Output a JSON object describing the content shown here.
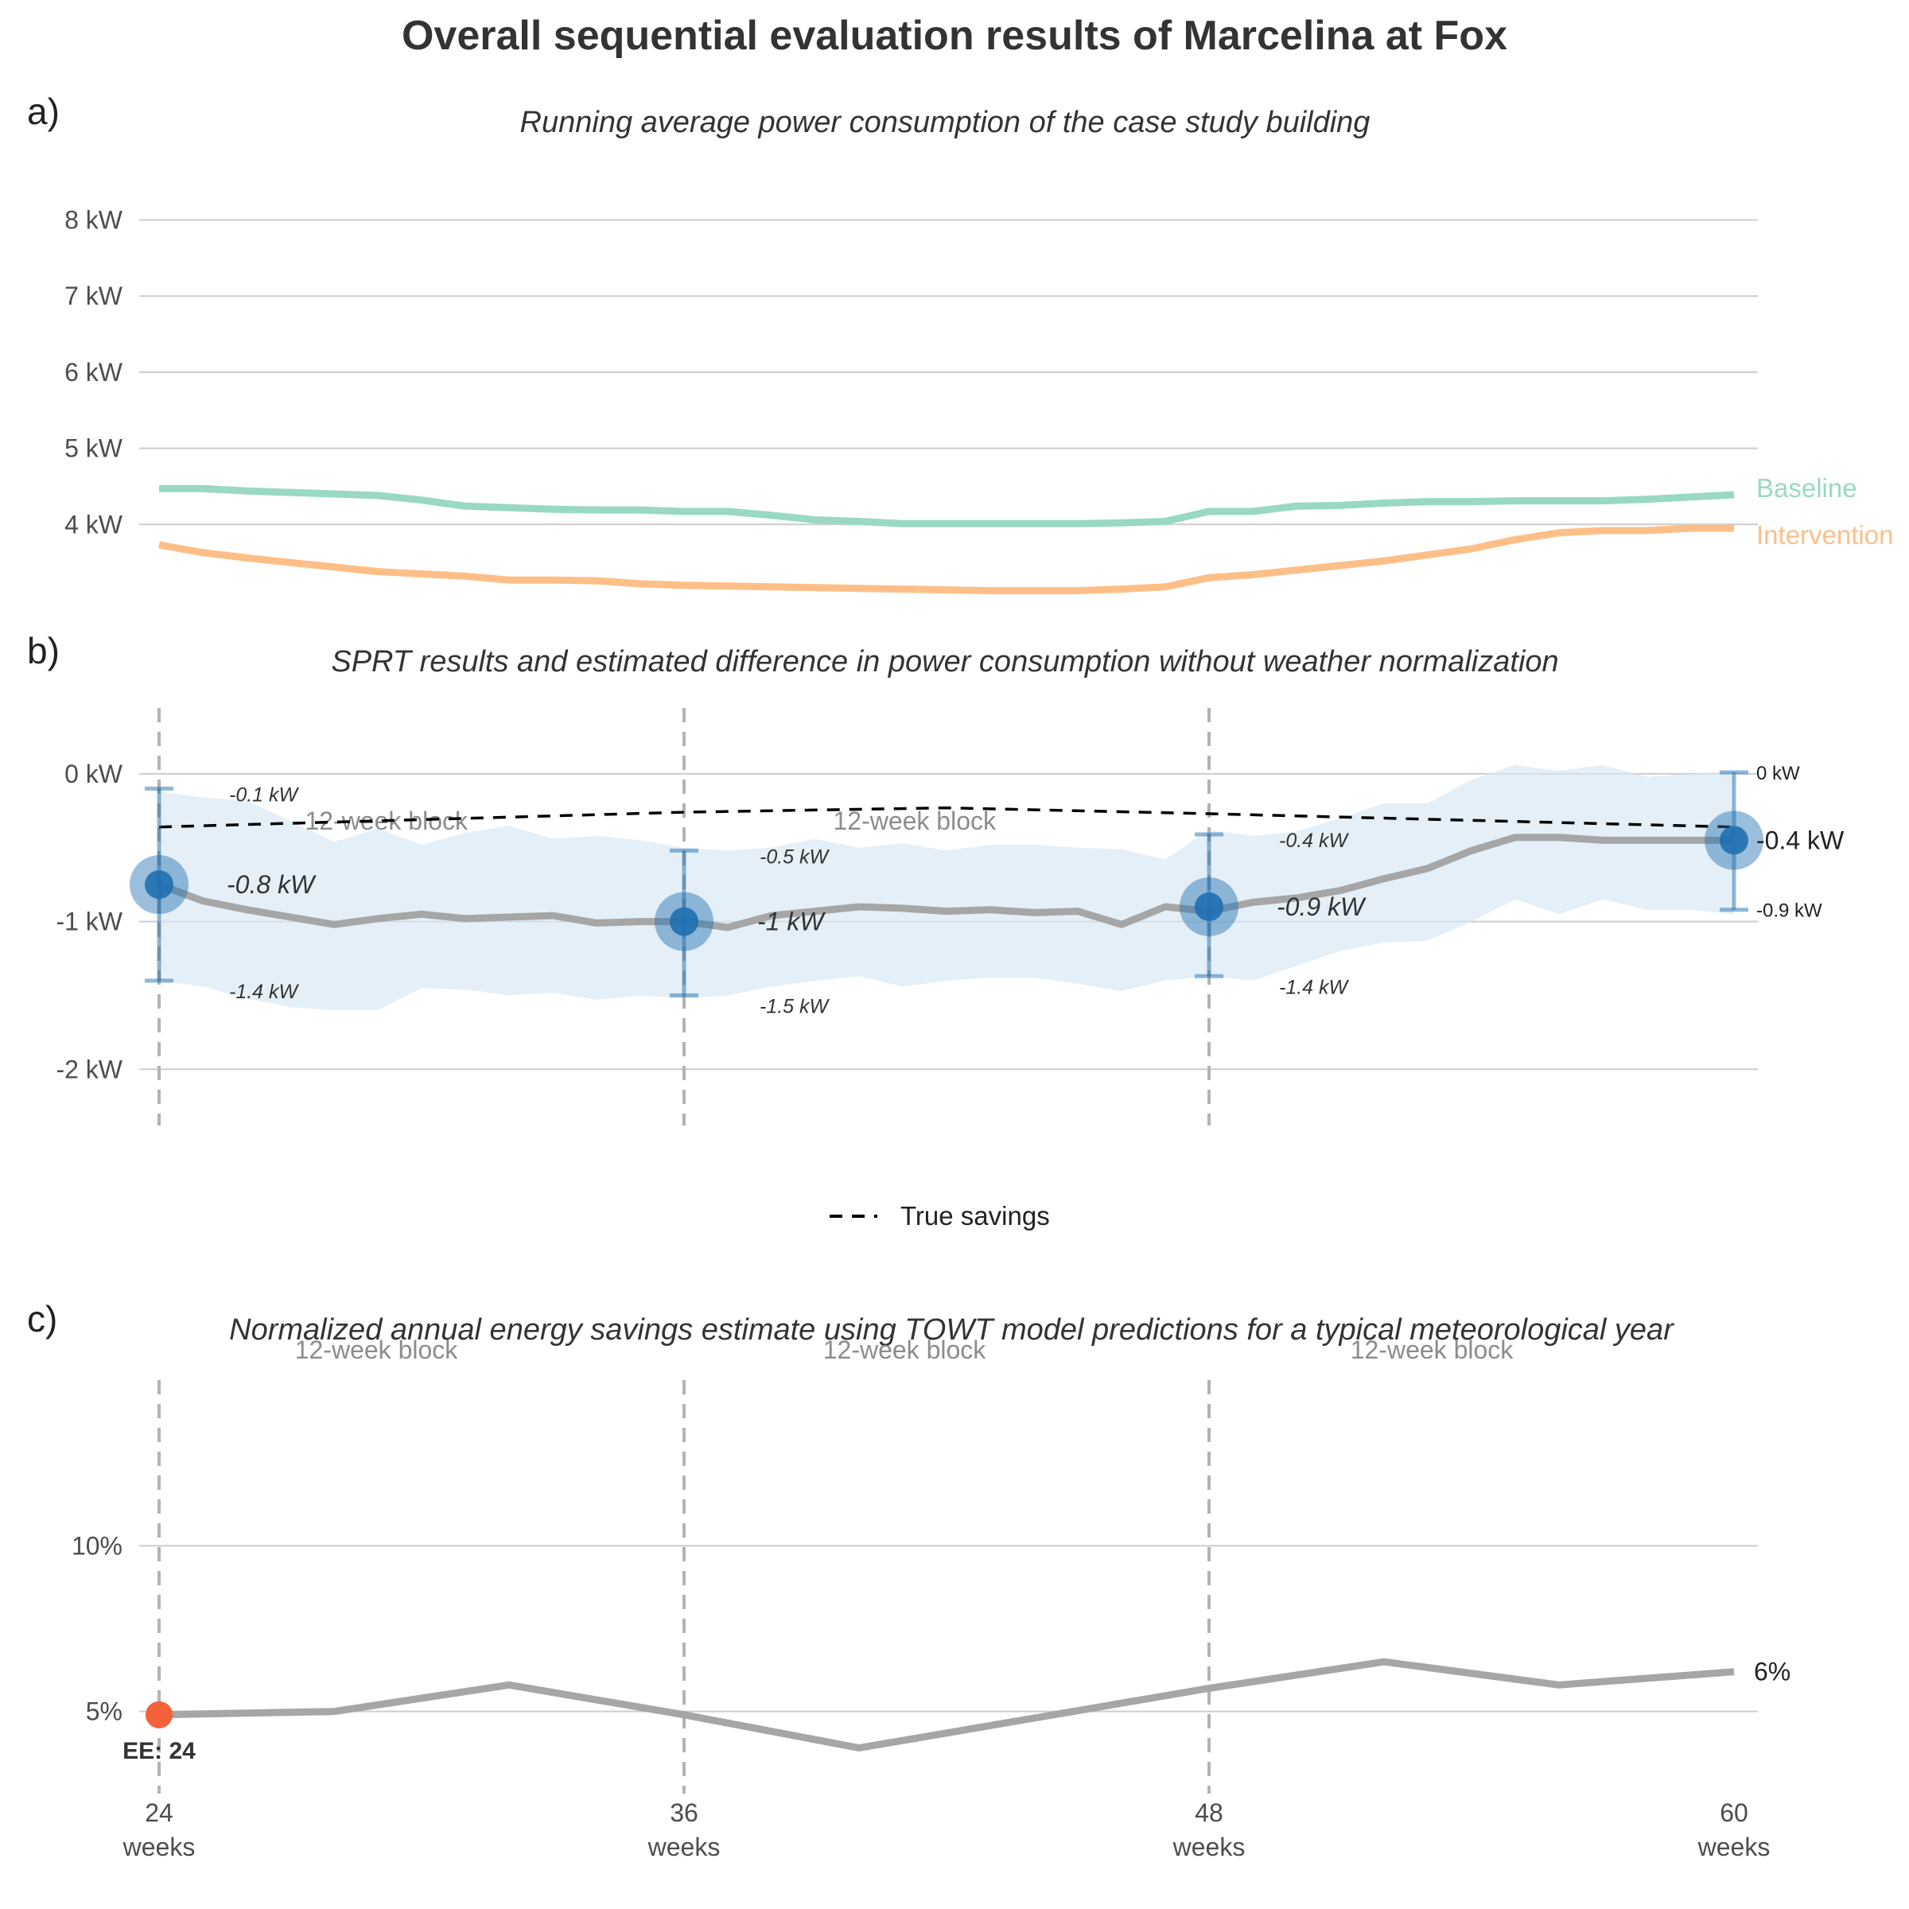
{
  "title": "Overall sequential evaluation results of Marcelina at Fox",
  "panels": {
    "a": {
      "tag": "a)",
      "subtitle": "Running average power consumption of the case study building"
    },
    "b": {
      "tag": "b)",
      "subtitle": "SPRT results and estimated difference in power consumption without weather normalization"
    },
    "c": {
      "tag": "c)",
      "subtitle": "Normalized annual energy savings estimate using TOWT model predictions for a typical meteorological year"
    }
  },
  "block_label": "12-week block",
  "legend": {
    "true_savings": "True savings"
  },
  "colors": {
    "baseline": "#99d8c4",
    "intervention": "#fdbf87",
    "estimate": "#a6a6a6",
    "sprt_point": "#1f6fb0",
    "ci_band": "#d6e6f2",
    "early_exit": "#f4623a"
  },
  "chart_data": [
    {
      "type": "line",
      "panel": "a",
      "x_unit": "weeks",
      "xlim": [
        24,
        60
      ],
      "ylim": [
        3,
        8.8
      ],
      "y_ticks": [
        4,
        5,
        6,
        7,
        8
      ],
      "y_tick_labels": [
        "4 kW",
        "5 kW",
        "6 kW",
        "7 kW",
        "8 kW"
      ],
      "x": [
        24,
        25,
        26,
        27,
        28,
        29,
        30,
        31,
        32,
        33,
        34,
        35,
        36,
        37,
        38,
        39,
        40,
        41,
        42,
        43,
        44,
        45,
        46,
        47,
        48,
        49,
        50,
        51,
        52,
        53,
        54,
        55,
        56,
        57,
        58,
        59,
        60
      ],
      "series": [
        {
          "name": "Baseline",
          "values": [
            4.47,
            4.47,
            4.44,
            4.42,
            4.4,
            4.38,
            4.32,
            4.24,
            4.22,
            4.2,
            4.19,
            4.19,
            4.17,
            4.17,
            4.12,
            4.06,
            4.04,
            4.01,
            4.01,
            4.01,
            4.01,
            4.01,
            4.02,
            4.04,
            4.17,
            4.17,
            4.24,
            4.25,
            4.28,
            4.3,
            4.3,
            4.31,
            4.31,
            4.31,
            4.33,
            4.36,
            4.39
          ]
        },
        {
          "name": "Intervention",
          "values": [
            3.73,
            3.63,
            3.56,
            3.5,
            3.44,
            3.38,
            3.35,
            3.32,
            3.27,
            3.27,
            3.26,
            3.22,
            3.2,
            3.19,
            3.18,
            3.17,
            3.16,
            3.15,
            3.14,
            3.13,
            3.13,
            3.13,
            3.15,
            3.18,
            3.3,
            3.34,
            3.4,
            3.46,
            3.52,
            3.6,
            3.68,
            3.8,
            3.89,
            3.92,
            3.92,
            3.95,
            3.95
          ]
        }
      ]
    },
    {
      "type": "line",
      "panel": "b",
      "x_unit": "weeks",
      "xlim": [
        24,
        60
      ],
      "ylim": [
        -2.3,
        0.5
      ],
      "y_ticks": [
        0,
        -1,
        -2
      ],
      "y_tick_labels": [
        "0 kW",
        "-1 kW",
        "-2 kW"
      ],
      "x": [
        24,
        25,
        26,
        27,
        28,
        29,
        30,
        31,
        32,
        33,
        34,
        35,
        36,
        37,
        38,
        39,
        40,
        41,
        42,
        43,
        44,
        45,
        46,
        47,
        48,
        49,
        50,
        51,
        52,
        53,
        54,
        55,
        56,
        57,
        58,
        59,
        60
      ],
      "estimate": [
        -0.75,
        -0.86,
        -0.92,
        -0.97,
        -1.02,
        -0.98,
        -0.95,
        -0.98,
        -0.97,
        -0.96,
        -1.01,
        -1.0,
        -1.0,
        -1.04,
        -0.96,
        -0.93,
        -0.9,
        -0.91,
        -0.93,
        -0.92,
        -0.94,
        -0.93,
        -1.02,
        -0.9,
        -0.93,
        -0.87,
        -0.84,
        -0.79,
        -0.71,
        -0.64,
        -0.52,
        -0.43,
        -0.43,
        -0.45,
        -0.45,
        -0.45,
        -0.45
      ],
      "ci_upper": [
        -0.12,
        -0.16,
        -0.18,
        -0.32,
        -0.46,
        -0.37,
        -0.48,
        -0.4,
        -0.35,
        -0.44,
        -0.42,
        -0.45,
        -0.5,
        -0.52,
        -0.5,
        -0.44,
        -0.5,
        -0.47,
        -0.52,
        -0.48,
        -0.48,
        -0.5,
        -0.51,
        -0.58,
        -0.38,
        -0.42,
        -0.39,
        -0.3,
        -0.2,
        -0.2,
        -0.04,
        0.06,
        0.02,
        0.06,
        -0.02,
        0.0,
        0.02
      ],
      "ci_lower": [
        -1.4,
        -1.44,
        -1.52,
        -1.58,
        -1.6,
        -1.6,
        -1.45,
        -1.46,
        -1.5,
        -1.48,
        -1.53,
        -1.5,
        -1.52,
        -1.5,
        -1.44,
        -1.4,
        -1.37,
        -1.44,
        -1.4,
        -1.38,
        -1.38,
        -1.42,
        -1.47,
        -1.4,
        -1.37,
        -1.4,
        -1.3,
        -1.2,
        -1.14,
        -1.13,
        -1.0,
        -0.85,
        -0.95,
        -0.85,
        -0.92,
        -0.92,
        -0.95
      ],
      "true_savings": {
        "x": [
          24,
          36,
          42,
          48,
          60
        ],
        "values": [
          -0.36,
          -0.26,
          -0.23,
          -0.27,
          -0.36
        ]
      },
      "sprt_points": [
        {
          "week": 24,
          "estimate": -0.75,
          "lower": -1.4,
          "upper": -0.1,
          "label": "-0.8 kW",
          "lower_label": "-1.4 kW",
          "upper_label": "-0.1 kW"
        },
        {
          "week": 36,
          "estimate": -1.0,
          "lower": -1.5,
          "upper": -0.52,
          "label": "-1 kW",
          "lower_label": "-1.5 kW",
          "upper_label": "-0.5 kW"
        },
        {
          "week": 48,
          "estimate": -0.9,
          "lower": -1.37,
          "upper": -0.41,
          "label": "-0.9 kW",
          "lower_label": "-1.4 kW",
          "upper_label": "-0.4 kW"
        },
        {
          "week": 60,
          "estimate": -0.45,
          "lower": -0.92,
          "upper": 0.01,
          "label": "-0.4 kW",
          "lower_label": "-0.9 kW",
          "upper_label": "0 kW"
        }
      ]
    },
    {
      "type": "line",
      "panel": "c",
      "x_unit": "weeks",
      "xlim": [
        24,
        60
      ],
      "ylim": [
        3.0,
        15.0
      ],
      "y_ticks": [
        5,
        10
      ],
      "y_tick_labels": [
        "5%",
        "10%"
      ],
      "x_ticks": [
        24,
        36,
        48,
        60
      ],
      "x_tick_labels": [
        "24",
        "36",
        "48",
        "60"
      ],
      "x_tick_unit": "weeks",
      "x": [
        24,
        28,
        32,
        36,
        40,
        44,
        48,
        52,
        56,
        60
      ],
      "values": [
        4.9,
        5.0,
        5.8,
        4.9,
        3.9,
        4.8,
        5.7,
        6.5,
        5.8,
        6.2
      ],
      "end_label": "6%",
      "early_exit": {
        "week": 24,
        "value": 4.9,
        "label": "EE: 24"
      }
    }
  ]
}
